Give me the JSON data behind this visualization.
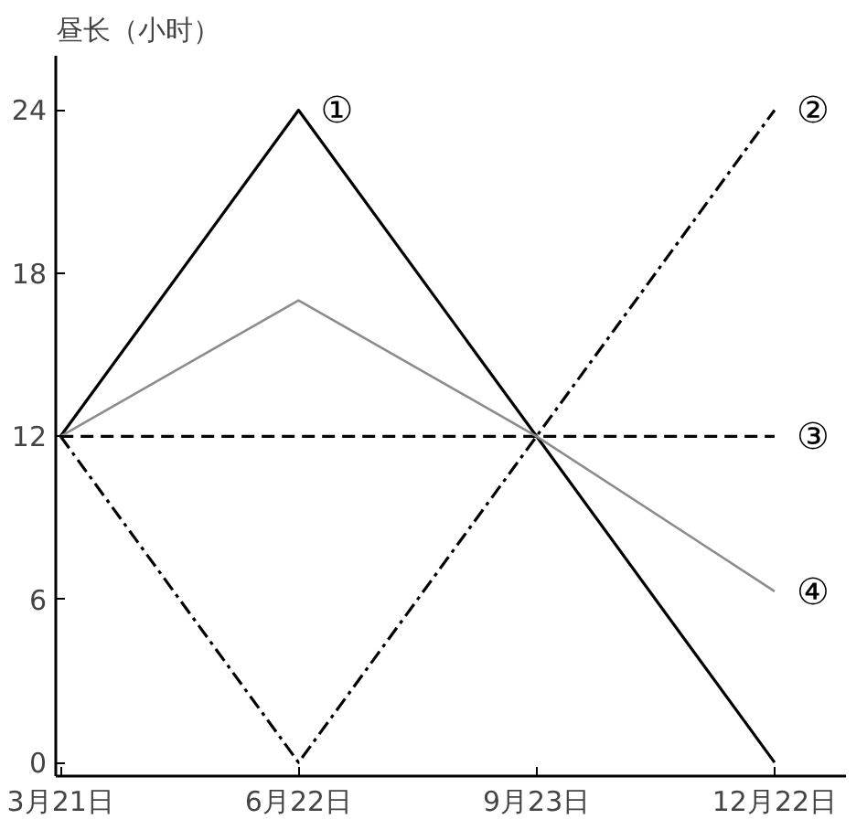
{
  "chart_data": {
    "type": "line",
    "ylabel": "昼长（小时）",
    "categories": [
      "3月21日",
      "6月22日",
      "9月23日",
      "12月22日"
    ],
    "series": [
      {
        "color": "#000000",
        "values": [
          12,
          24,
          12,
          0
        ],
        "line_style": "solid"
      },
      {
        "color": "#000000",
        "values": [
          12,
          0,
          12,
          24
        ],
        "line_style": "dashdot"
      },
      {
        "color": "#000000",
        "values": [
          12,
          12,
          12,
          12
        ],
        "line_style": "dashed"
      },
      {
        "color": "#8c8c8c",
        "values": [
          12,
          17,
          12,
          6.3
        ],
        "line_style": "solid"
      }
    ],
    "ylim": [
      -0.5,
      26
    ],
    "yticks": [
      0,
      6,
      12,
      18,
      24
    ],
    "grid": false,
    "marker": "none",
    "annotations": [
      {
        "text": "①",
        "x": "6月22日",
        "y": 24
      },
      {
        "text": "②",
        "x": "12月22日",
        "y": 24
      },
      {
        "text": "③",
        "x": "12月22日",
        "y": 12
      },
      {
        "text": "④",
        "x": "12月22日",
        "y": 6.3
      }
    ]
  }
}
